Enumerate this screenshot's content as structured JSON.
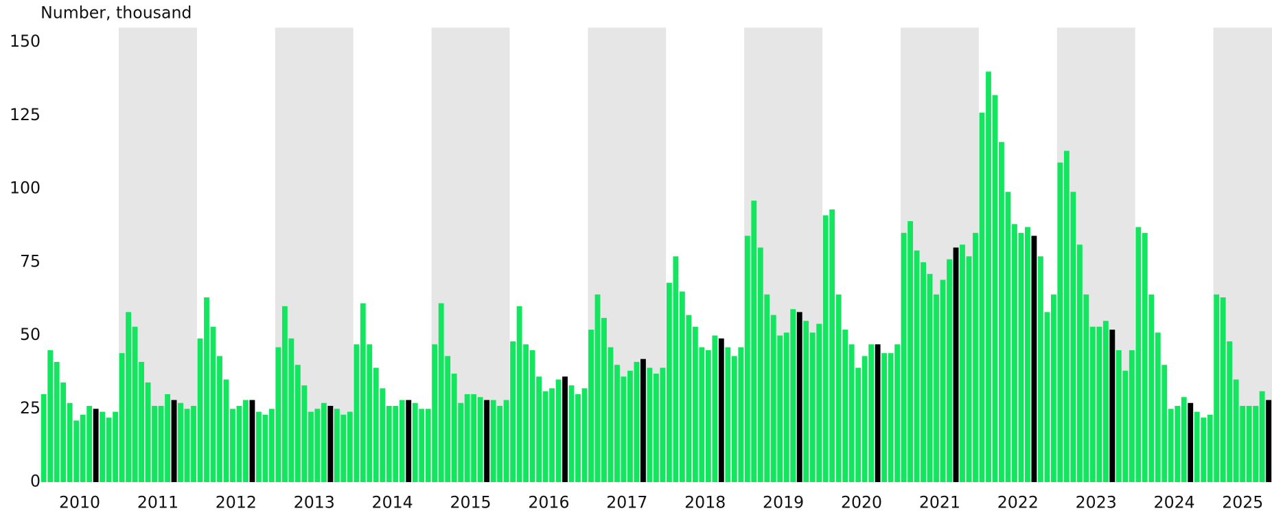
{
  "chart_data": {
    "type": "bar",
    "title": "Number, thousand",
    "categories": [
      "2010",
      "2011",
      "2012",
      "2013",
      "2014",
      "2015",
      "2016",
      "2017",
      "2018",
      "2019",
      "2020",
      "2021",
      "2022",
      "2023",
      "2024",
      "2025"
    ],
    "values": [
      [
        30,
        45,
        41,
        34,
        27,
        21,
        23,
        26,
        25,
        24,
        22,
        24
      ],
      [
        44,
        58,
        53,
        41,
        34,
        26,
        26,
        30,
        28,
        27,
        25,
        26
      ],
      [
        49,
        63,
        53,
        43,
        35,
        25,
        26,
        28,
        28,
        24,
        23,
        25
      ],
      [
        46,
        60,
        49,
        40,
        33,
        24,
        25,
        27,
        26,
        25,
        23,
        24
      ],
      [
        47,
        61,
        47,
        39,
        32,
        26,
        26,
        28,
        28,
        27,
        25,
        25
      ],
      [
        47,
        61,
        43,
        37,
        27,
        30,
        30,
        29,
        28,
        28,
        26,
        28
      ],
      [
        48,
        60,
        47,
        45,
        36,
        31,
        32,
        35,
        36,
        33,
        30,
        32
      ],
      [
        52,
        64,
        56,
        46,
        40,
        36,
        38,
        41,
        42,
        39,
        37,
        39
      ],
      [
        68,
        77,
        65,
        57,
        53,
        46,
        45,
        50,
        49,
        46,
        43,
        46
      ],
      [
        84,
        96,
        80,
        64,
        57,
        50,
        51,
        59,
        58,
        55,
        51,
        54
      ],
      [
        91,
        93,
        64,
        52,
        47,
        39,
        43,
        47,
        47,
        44,
        44,
        47
      ],
      [
        85,
        89,
        79,
        75,
        71,
        64,
        69,
        76,
        80,
        81,
        77,
        85
      ],
      [
        126,
        140,
        132,
        116,
        99,
        88,
        85,
        87,
        84,
        77,
        58,
        64
      ],
      [
        109,
        113,
        99,
        81,
        64,
        53,
        53,
        55,
        52,
        45,
        38,
        45
      ],
      [
        87,
        85,
        64,
        51,
        40,
        25,
        26,
        29,
        27,
        24,
        22,
        23
      ],
      [
        64,
        63,
        48,
        35,
        26,
        26,
        26,
        31,
        28
      ]
    ],
    "color": "#12e65e",
    "highlight_index": 8,
    "highlight_color": "#000000",
    "shade_color": "#e6e6e6",
    "ylim": [
      0,
      155
    ],
    "yticks": [
      0,
      25,
      50,
      75,
      100,
      125,
      150
    ],
    "grid": false
  }
}
